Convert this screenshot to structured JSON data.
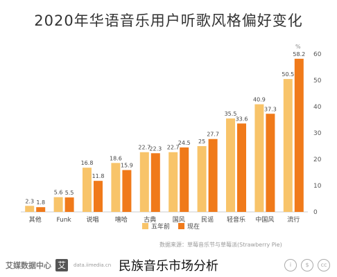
{
  "caption": "民族音乐市场分析",
  "source_note": "数据来源：草莓音乐节与草莓派(Strawberry Pie)",
  "watermark": {
    "brand": "艾媒数据中心",
    "sub": "data.iimedia.cn",
    "badge": "艾"
  },
  "colors": {
    "series_2019": "#F8C46A",
    "series_2020": "#F07A1A",
    "axis": "#cccccc",
    "grid": "#eeeeee"
  },
  "chart_data": {
    "type": "bar",
    "title": "2020年华语音乐用户听歌风格偏好变化",
    "categories": [
      "其他",
      "Funk",
      "说唱",
      "嘻哈",
      "古典",
      "国风",
      "民谣",
      "轻音乐",
      "中国风",
      "流行"
    ],
    "series": [
      {
        "name": "五年前",
        "values": [
          2.3,
          5.6,
          16.8,
          18.6,
          22.7,
          22.7,
          25.0,
          35.5,
          40.9,
          50.5
        ]
      },
      {
        "name": "现在",
        "values": [
          1.8,
          5.5,
          11.8,
          15.9,
          22.3,
          24.5,
          27.7,
          33.6,
          37.3,
          58.2
        ]
      }
    ],
    "ylim": [
      0,
      60
    ],
    "yticks": [
      0,
      10,
      20,
      30,
      40,
      50,
      60
    ],
    "yunit": "%",
    "grid": false,
    "legend": "bottom-center",
    "value_labels": true
  }
}
